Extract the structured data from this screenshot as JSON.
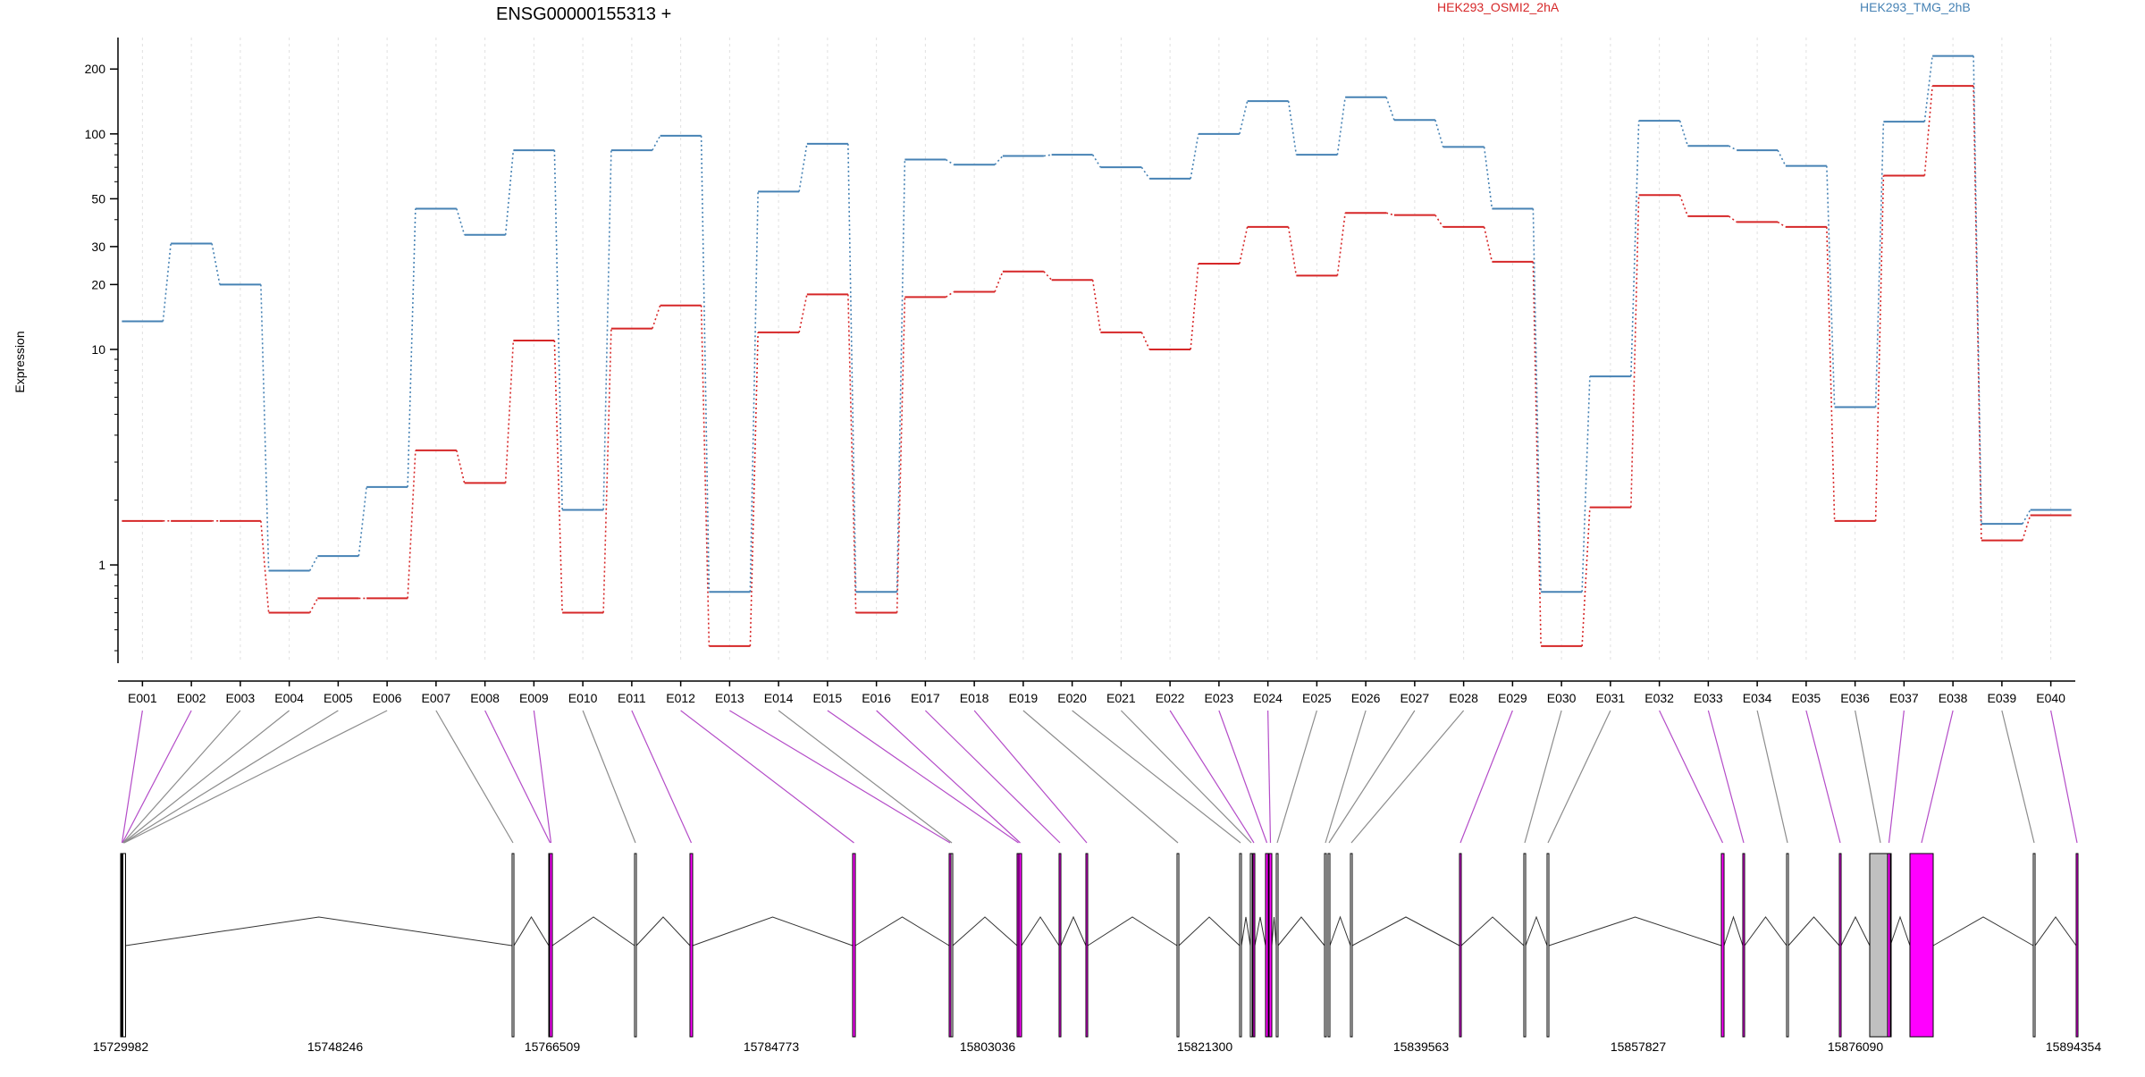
{
  "chart_data": {
    "type": "line",
    "title": "ENSG00000155313 +",
    "xlabel": "",
    "ylabel": "Expression",
    "y_scale": "log",
    "ylim": [
      0.35,
      280
    ],
    "y_ticks": [
      1,
      10,
      20,
      30,
      50,
      100,
      200
    ],
    "y_tick_labels": [
      "1",
      "10",
      "20",
      "30",
      "50",
      "100",
      "200"
    ],
    "grid": "vertical dotted per exon",
    "legend_placement": "top",
    "categories": [
      "E001",
      "E002",
      "E003",
      "E004",
      "E005",
      "E006",
      "E007",
      "E008",
      "E009",
      "E010",
      "E011",
      "E012",
      "E013",
      "E014",
      "E015",
      "E016",
      "E017",
      "E018",
      "E019",
      "E020",
      "E021",
      "E022",
      "E023",
      "E024",
      "E025",
      "E026",
      "E027",
      "E028",
      "E029",
      "E030",
      "E031",
      "E032",
      "E033",
      "E034",
      "E035",
      "E036",
      "E037",
      "E038",
      "E039",
      "E040"
    ],
    "series": [
      {
        "name": "HEK293_OSMI2_2hA",
        "color": "#d62728",
        "values": [
          1.6,
          1.6,
          1.6,
          0.6,
          0.7,
          0.7,
          3.4,
          2.4,
          11,
          0.6,
          12.5,
          16,
          0.42,
          12,
          18,
          0.6,
          17.5,
          18.5,
          23,
          21,
          12,
          10,
          25,
          37,
          22,
          43,
          42,
          37,
          25.5,
          0.42,
          1.85,
          52,
          41.5,
          39,
          37,
          1.6,
          64,
          167,
          1.3,
          1.7
        ]
      },
      {
        "name": "HEK293_TMG_2hB",
        "color": "#4682b4",
        "values": [
          13.5,
          31,
          20,
          0.94,
          1.1,
          2.3,
          45,
          34,
          84,
          1.8,
          84,
          98,
          0.75,
          54,
          90,
          0.75,
          76,
          72,
          79,
          80,
          70,
          62,
          100,
          142,
          80,
          148,
          116,
          87,
          45,
          0.75,
          7.5,
          115,
          88,
          84,
          71,
          5.4,
          114,
          230,
          1.55,
          1.8
        ]
      }
    ],
    "gene_model": {
      "strand": "+",
      "coord_labels": [
        "15729982",
        "15748246",
        "15766509",
        "15784773",
        "15803036",
        "15821300",
        "15839563",
        "15857827",
        "15876090",
        "15894354"
      ],
      "exon_highlight_color": "#ff00ff",
      "exon_highlighted": [
        true,
        true,
        false,
        false,
        false,
        false,
        false,
        true,
        true,
        false,
        true,
        true,
        true,
        false,
        true,
        true,
        true,
        true,
        false,
        false,
        false,
        true,
        true,
        true,
        false,
        false,
        false,
        false,
        true,
        false,
        false,
        true,
        true,
        false,
        true,
        false,
        true,
        true,
        false,
        true
      ]
    }
  }
}
